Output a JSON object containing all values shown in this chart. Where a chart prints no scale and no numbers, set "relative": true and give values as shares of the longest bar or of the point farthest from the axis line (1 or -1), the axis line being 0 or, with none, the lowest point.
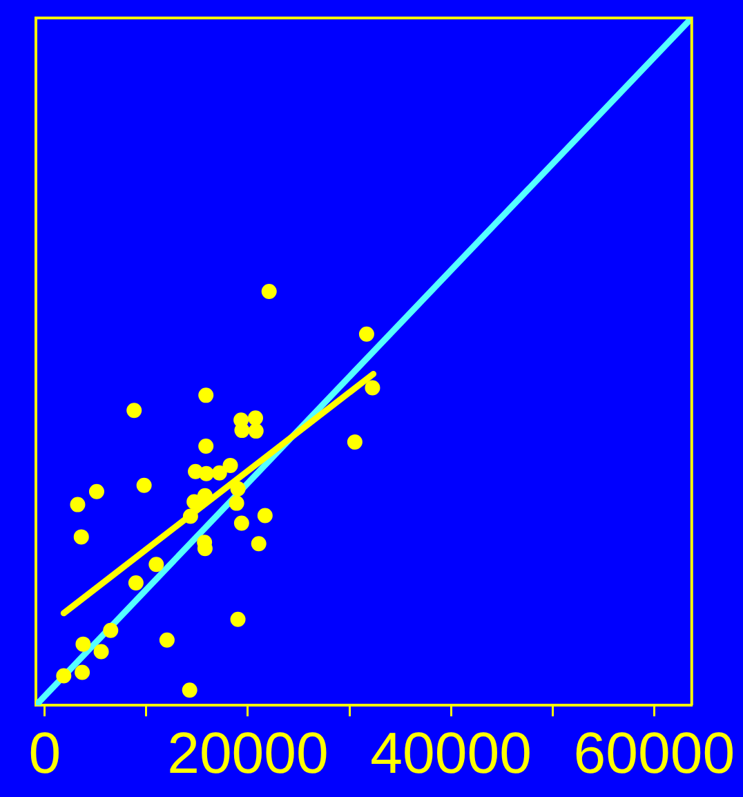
{
  "chart_data": {
    "type": "scatter",
    "relative": true,
    "xlim": [
      -870,
      63700
    ],
    "xticks": [
      0,
      {
        "value": 10000,
        "label": null
      },
      20000,
      {
        "value": 30000,
        "label": null
      },
      40000,
      {
        "value": 50000,
        "label": null
      },
      60000
    ],
    "grid": false,
    "legend": false,
    "marker": "circle",
    "series": [
      {
        "type": "scatter",
        "color": "#ffff00",
        "x": [
          22090,
          31690,
          32270,
          15870,
          8800,
          19330,
          20750,
          19420,
          20800,
          30530,
          15870,
          18270,
          14840,
          15910,
          17200,
          9780,
          5110,
          3240,
          14710,
          15780,
          19020,
          14350,
          18890,
          21690,
          19380,
          3600,
          15730,
          15780,
          21070,
          10980,
          8980,
          6490,
          19020,
          3780,
          5560,
          12040,
          1870,
          3690,
          14270
        ],
        "values": [
          0.602,
          0.54,
          0.462,
          0.451,
          0.429,
          0.415,
          0.418,
          0.4,
          0.399,
          0.383,
          0.377,
          0.349,
          0.34,
          0.337,
          0.338,
          0.32,
          0.311,
          0.292,
          0.296,
          0.305,
          0.315,
          0.275,
          0.294,
          0.276,
          0.265,
          0.245,
          0.237,
          0.228,
          0.235,
          0.205,
          0.178,
          0.109,
          0.125,
          0.089,
          0.078,
          0.095,
          0.043,
          0.048,
          0.022
        ]
      },
      {
        "type": "line",
        "color": "#ffff00",
        "marker": "none",
        "line_style": "solid",
        "x": [
          1870,
          32350
        ],
        "values": [
          0.134,
          0.482
        ]
      },
      {
        "type": "line",
        "color": "#55ffff",
        "marker": "none",
        "line_style": "solid",
        "x": [
          -870,
          63700
        ],
        "values": [
          0,
          1
        ]
      }
    ]
  }
}
